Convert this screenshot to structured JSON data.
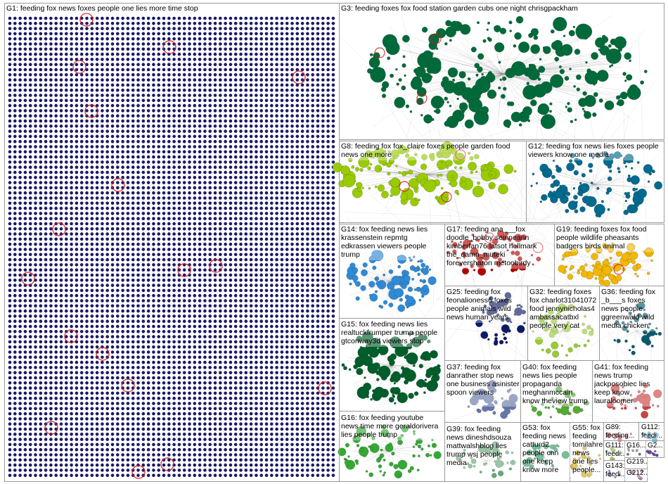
{
  "groups": [
    {
      "id": "G1",
      "label": "G1: feeding fox news foxes people one lies more time stop",
      "color": "#1a1a66"
    },
    {
      "id": "G3",
      "label": "G3: feeding foxes fox food station garden cubs one night chrisgpackham",
      "color": "#006a3a"
    },
    {
      "id": "G8",
      "label": "G8: feeding fox fox_claire foxes people garden food news one more",
      "color": "#99cc00"
    },
    {
      "id": "G12",
      "label": "G12: feeding fox news lies foxes people viewers know one media",
      "color": "#006b8f"
    },
    {
      "id": "G14",
      "label": "G14: fox feeding news lies krassenstein repmtg edkrassen viewers people trump",
      "color": "#2e8bd8"
    },
    {
      "id": "G15",
      "label": "G15: fox feeding news lies realtuckfrumper trump people gtconway3d viewers stop",
      "color": "#005e2a"
    },
    {
      "id": "G16",
      "label": "G16: fox feeding youtube news time more geraldorivera lies people trump",
      "color": "#33aa33"
    },
    {
      "id": "G17",
      "label": "G17: feeding ana___fox doodle_bobby seinneann kimberfan76 latsot hellmark the_damn_muteki foreversharon metoobirdy",
      "color": "#b30000"
    },
    {
      "id": "G19",
      "label": "G19: feeding foxes fox food people wildlife pheasants badgers birds animal",
      "color": "#f2b800"
    },
    {
      "id": "G25",
      "label": "G25: feeding fox feonalioness6 foxes people animals wild news human years",
      "color": "#0d1a66"
    },
    {
      "id": "G32",
      "label": "G32: feeding foxes fox charlot31041072 food jennynicholas4 ambassacatbxl people very cat",
      "color": "#99cc33"
    },
    {
      "id": "G36",
      "label": "G36: feeding fox _b___s foxes news people ggreenwald wild media chicken",
      "color": "#0a5a6e"
    },
    {
      "id": "G37",
      "label": "G37: feeding fox danrather stop news one business asinister spoon viewers",
      "color": "#6677aa"
    },
    {
      "id": "G39",
      "label": "G39: fox feeding news dineshdsouza mattwalshblog lies trump wsj people media",
      "color": "#66aa77"
    },
    {
      "id": "G40",
      "label": "G40: fox feeding news lies people propaganda meghanmccain know theview trump",
      "color": "#55aa33"
    },
    {
      "id": "G41",
      "label": "G41: fox feeding news trump jackposobiec lies keep know lauraloomer rondesantis",
      "color": "#cc4444"
    },
    {
      "id": "G53",
      "label": "G53: fox feeding news catturd2 people cnn one keep know more",
      "color": "#339966"
    },
    {
      "id": "G55",
      "label": "G55: fox feeding tomilahren news one lies people...",
      "color": "#ccaa22"
    },
    {
      "id": "G89",
      "label": "G89: feeding...",
      "color": "#cc5555"
    },
    {
      "id": "G112",
      "label": "G112: feedi...",
      "color": "#55aacc"
    },
    {
      "id": "G111",
      "label": "G111: feedi...",
      "color": "#88bb44"
    },
    {
      "id": "G16x",
      "label": "G16...",
      "color": "#777777"
    },
    {
      "id": "G2x",
      "label": "G2...",
      "color": "#664499"
    },
    {
      "id": "G143",
      "label": "G143: feedi...",
      "color": "#7744bb"
    },
    {
      "id": "G219",
      "label": "G219...",
      "color": "#66aa66"
    },
    {
      "id": "G212",
      "label": "G212...",
      "color": "#aa66aa"
    }
  ]
}
